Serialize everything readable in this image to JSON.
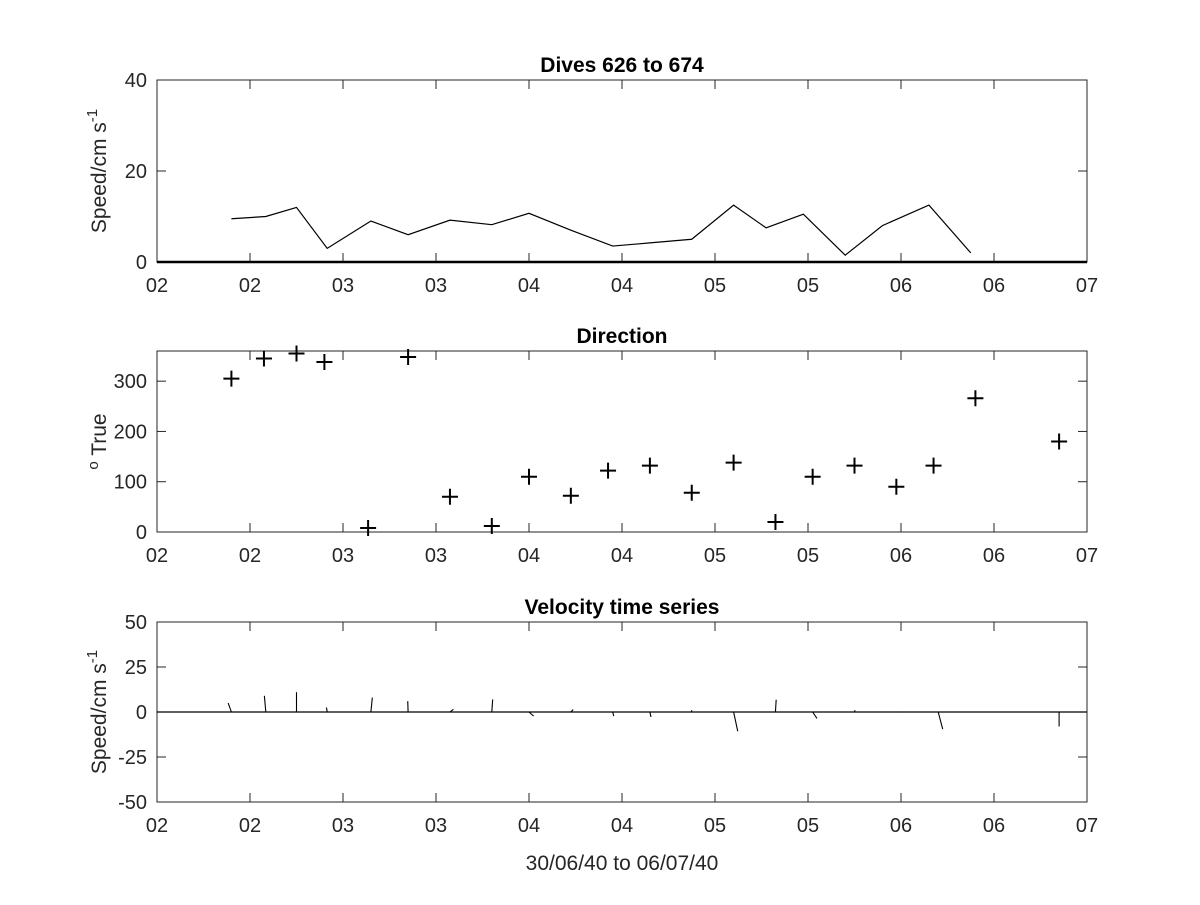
{
  "chart_data": [
    {
      "type": "line",
      "title": "Dives 626 to 674",
      "ylabel": "Speed/cm s",
      "ylabel_sup": "-1",
      "ylim": [
        0,
        40
      ],
      "yticks": [
        0,
        20,
        40
      ],
      "xlim": [
        0,
        10
      ],
      "xtick_labels": [
        "02",
        "02",
        "03",
        "03",
        "04",
        "04",
        "05",
        "05",
        "06",
        "06",
        "07"
      ],
      "series": [
        {
          "x": [
            0.8,
            1.17,
            1.5,
            1.83,
            2.3,
            2.7,
            3.15,
            3.6,
            4.0,
            4.45,
            4.9,
            5.3,
            5.75,
            6.2,
            6.55,
            6.95,
            7.4,
            7.8,
            8.3,
            8.75
          ],
          "y": [
            9.5,
            10,
            12,
            3,
            9,
            6,
            9.2,
            8.2,
            10.7,
            7,
            3.5,
            4.2,
            5,
            12.5,
            7.5,
            10.5,
            1.5,
            8,
            12.5,
            2
          ]
        }
      ]
    },
    {
      "type": "scatter",
      "title": "Direction",
      "ylabel": "True",
      "ylabel_prefix": "o",
      "ylim": [
        0,
        360
      ],
      "yticks": [
        0,
        100,
        200,
        300
      ],
      "xlim": [
        0,
        10
      ],
      "xtick_labels": [
        "02",
        "02",
        "03",
        "03",
        "04",
        "04",
        "05",
        "05",
        "06",
        "06",
        "07"
      ],
      "series": [
        {
          "x": [
            0.8,
            1.15,
            1.5,
            1.8,
            2.27,
            2.7,
            3.15,
            3.6,
            4.0,
            4.45,
            4.85,
            5.3,
            5.75,
            6.2,
            6.65,
            7.05,
            7.5,
            7.95,
            8.35,
            8.8,
            9.7
          ],
          "y": [
            305,
            345,
            355,
            338,
            8,
            348,
            70,
            12,
            110,
            72,
            122,
            132,
            78,
            138,
            20,
            110,
            132,
            90,
            132,
            266,
            180
          ]
        }
      ]
    },
    {
      "type": "quiver",
      "title": "Velocity time series",
      "xlabel": "30/06/40 to 06/07/40",
      "ylabel": "Speed/cm s",
      "ylabel_sup": "-1",
      "ylim": [
        -50,
        50
      ],
      "yticks": [
        -50,
        -25,
        0,
        25,
        50
      ],
      "xlim": [
        0,
        10
      ],
      "xtick_labels": [
        "02",
        "02",
        "03",
        "03",
        "04",
        "04",
        "05",
        "05",
        "06",
        "06",
        "07"
      ],
      "series": [
        {
          "x": [
            0.8,
            1.17,
            1.5,
            1.83,
            2.3,
            2.7,
            3.15,
            3.6,
            4.0,
            4.45,
            4.9,
            5.3,
            5.75,
            6.2,
            6.65,
            7.05,
            7.5,
            7.95,
            8.4,
            9.7
          ],
          "u": [
            -1.8,
            -0.8,
            0,
            -0.4,
            0.8,
            -0.2,
            1.9,
            0.5,
            2.6,
            1.3,
            0.6,
            0.6,
            -0.1,
            2.3,
            0.4,
            2.4,
            0.3,
            0.8,
            2.5,
            0
          ],
          "v": [
            5,
            9,
            11,
            2.5,
            8,
            6,
            1.5,
            7,
            -2.3,
            1.4,
            -2.3,
            -2.8,
            1,
            -10.7,
            6.8,
            -3.6,
            1,
            0,
            -9.5,
            -8
          ]
        }
      ]
    }
  ]
}
